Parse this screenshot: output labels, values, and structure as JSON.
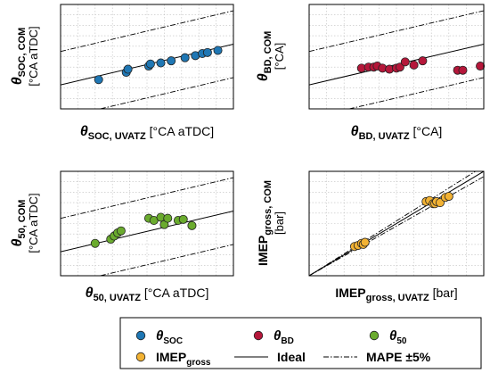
{
  "colors": {
    "soc": "#1f77b4",
    "bd": "#b5173a",
    "fifty": "#6aab2e",
    "imep": "#f2b233",
    "grid": "#bfbfbf"
  },
  "chart_data": [
    {
      "type": "scatter",
      "id": "soc",
      "xlabel_sym": "θ",
      "xlabel_sub": "SOC, UVATZ",
      "xlabel_unit": "[°CA aTDC]",
      "ylabel_sym": "θ",
      "ylabel_sub": "SOC, COM",
      "ylabel_unit": "[°CA aTDC]",
      "lim": [
        0,
        10
      ],
      "grid": true,
      "points": [
        [
          2.2,
          2.8
        ],
        [
          3.8,
          3.5
        ],
        [
          3.9,
          3.8
        ],
        [
          5.1,
          4.1
        ],
        [
          5.2,
          4.3
        ],
        [
          5.8,
          4.4
        ],
        [
          6.4,
          4.6
        ],
        [
          7.2,
          4.9
        ],
        [
          7.8,
          5.1
        ],
        [
          8.2,
          5.3
        ],
        [
          8.5,
          5.4
        ],
        [
          9.1,
          5.6
        ]
      ]
    },
    {
      "type": "scatter",
      "id": "bd",
      "xlabel_sym": "θ",
      "xlabel_sub": "BD, UVATZ",
      "xlabel_unit": "[°CA]",
      "ylabel_sym": "θ",
      "ylabel_sub": "BD, COM",
      "ylabel_unit": "[°CA]",
      "lim": [
        0,
        10
      ],
      "grid": true,
      "points": [
        [
          3.0,
          3.9
        ],
        [
          3.4,
          4.0
        ],
        [
          3.7,
          4.0
        ],
        [
          3.9,
          4.1
        ],
        [
          4.2,
          3.9
        ],
        [
          4.6,
          3.8
        ],
        [
          5.0,
          3.9
        ],
        [
          5.2,
          4.0
        ],
        [
          5.5,
          4.5
        ],
        [
          6.0,
          4.2
        ],
        [
          6.5,
          4.6
        ],
        [
          8.5,
          3.7
        ],
        [
          8.8,
          3.7
        ],
        [
          9.8,
          4.1
        ]
      ]
    },
    {
      "type": "scatter",
      "id": "fifty",
      "xlabel_sym": "θ",
      "xlabel_sub": "50, UVATZ",
      "xlabel_unit": "[°CA aTDC]",
      "ylabel_sym": "θ",
      "ylabel_sub": "50, COM",
      "ylabel_unit": "[°CA aTDC]",
      "lim": [
        0,
        10
      ],
      "grid": true,
      "points": [
        [
          2.0,
          3.1
        ],
        [
          2.9,
          3.5
        ],
        [
          3.1,
          3.8
        ],
        [
          3.3,
          4.1
        ],
        [
          3.5,
          4.3
        ],
        [
          5.1,
          5.5
        ],
        [
          5.4,
          5.3
        ],
        [
          5.8,
          5.6
        ],
        [
          6.0,
          4.9
        ],
        [
          6.2,
          5.5
        ],
        [
          6.8,
          5.3
        ],
        [
          7.1,
          5.4
        ],
        [
          7.6,
          4.8
        ]
      ]
    },
    {
      "type": "scatter",
      "id": "imep",
      "xlabel_sym": "IMEP",
      "xlabel_sub": "gross, UVATZ",
      "xlabel_unit": "[bar]",
      "ylabel_sym": "IMEP",
      "ylabel_sub": "gross, COM",
      "ylabel_unit": "[bar]",
      "lim": [
        0,
        10
      ],
      "grid": true,
      "points": [
        [
          2.6,
          2.8
        ],
        [
          2.8,
          2.9
        ],
        [
          3.0,
          3.1
        ],
        [
          3.1,
          3.0
        ],
        [
          3.2,
          3.2
        ],
        [
          6.7,
          7.1
        ],
        [
          6.9,
          7.2
        ],
        [
          7.1,
          6.9
        ],
        [
          7.2,
          6.9
        ],
        [
          7.3,
          7.1
        ],
        [
          7.5,
          7.0
        ],
        [
          7.8,
          7.5
        ],
        [
          8.0,
          7.6
        ]
      ]
    }
  ],
  "legend": {
    "items": [
      {
        "id": "leg-soc",
        "kind": "marker",
        "color_key": "soc",
        "sym": "θ",
        "sub": "SOC"
      },
      {
        "id": "leg-bd",
        "kind": "marker",
        "color_key": "bd",
        "sym": "θ",
        "sub": "BD"
      },
      {
        "id": "leg-50",
        "kind": "marker",
        "color_key": "fifty",
        "sym": "θ",
        "sub": "50"
      },
      {
        "id": "leg-imep",
        "kind": "marker",
        "color_key": "imep",
        "sym": "IMEP",
        "sub": "gross"
      },
      {
        "id": "leg-ideal",
        "kind": "solid",
        "text": "Ideal"
      },
      {
        "id": "leg-mape",
        "kind": "dashdot",
        "text": "MAPE ±5%"
      }
    ]
  }
}
